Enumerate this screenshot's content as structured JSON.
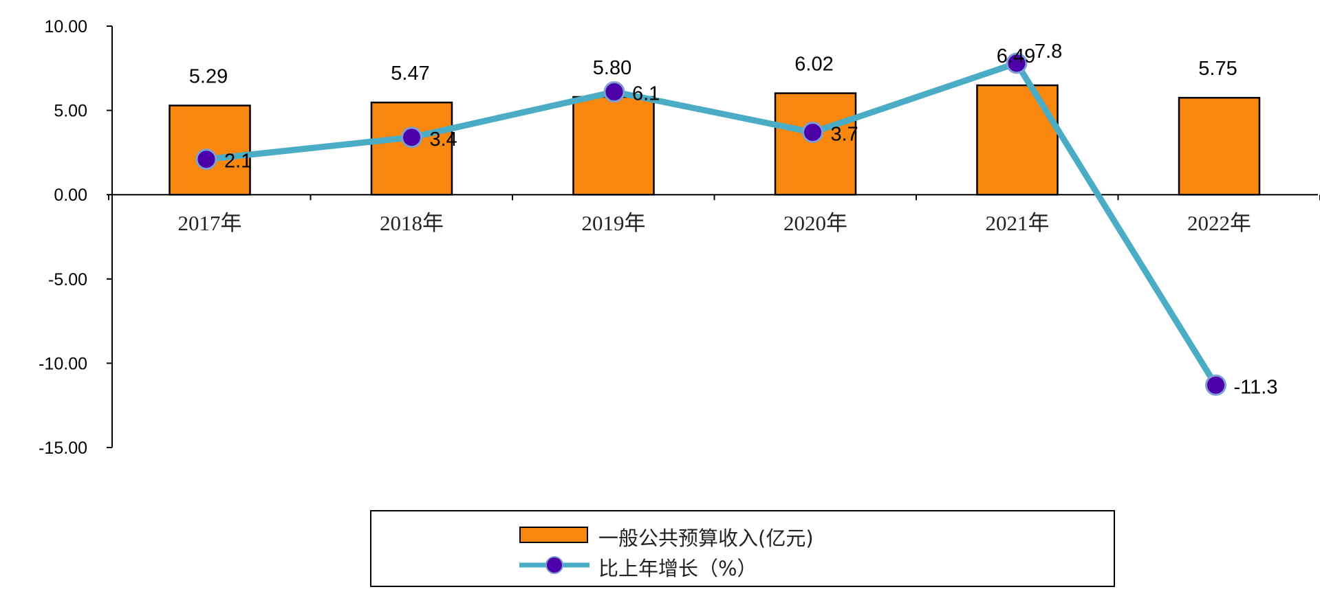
{
  "chart_data": {
    "type": "bar",
    "categories": [
      "2017年",
      "2018年",
      "2019年",
      "2020年",
      "2021年",
      "2022年"
    ],
    "y_ticks": [
      "10.00",
      "5.00",
      "0.00",
      "-5.00",
      "-10.00",
      "-15.00"
    ],
    "ylim": [
      -15,
      10
    ],
    "grid": false,
    "legend_position": "bottom",
    "series": [
      {
        "name": "一般公共预算收入(亿元)",
        "type": "bar",
        "color": "#f7870e",
        "values": [
          5.29,
          5.47,
          5.8,
          6.02,
          6.49,
          5.75
        ],
        "labels": [
          "5.29",
          "5.47",
          "5.80",
          "6.02",
          "6.49",
          "5.75"
        ]
      },
      {
        "name": "比上年增长（%）",
        "type": "line",
        "color": "#4bacc6",
        "marker_color": "#4b00a8",
        "values": [
          2.1,
          3.4,
          6.1,
          3.7,
          7.8,
          -11.3
        ],
        "labels": [
          "2.1",
          "3.4",
          "6.1",
          "3.7",
          "7.8",
          "-11.3"
        ]
      }
    ]
  }
}
